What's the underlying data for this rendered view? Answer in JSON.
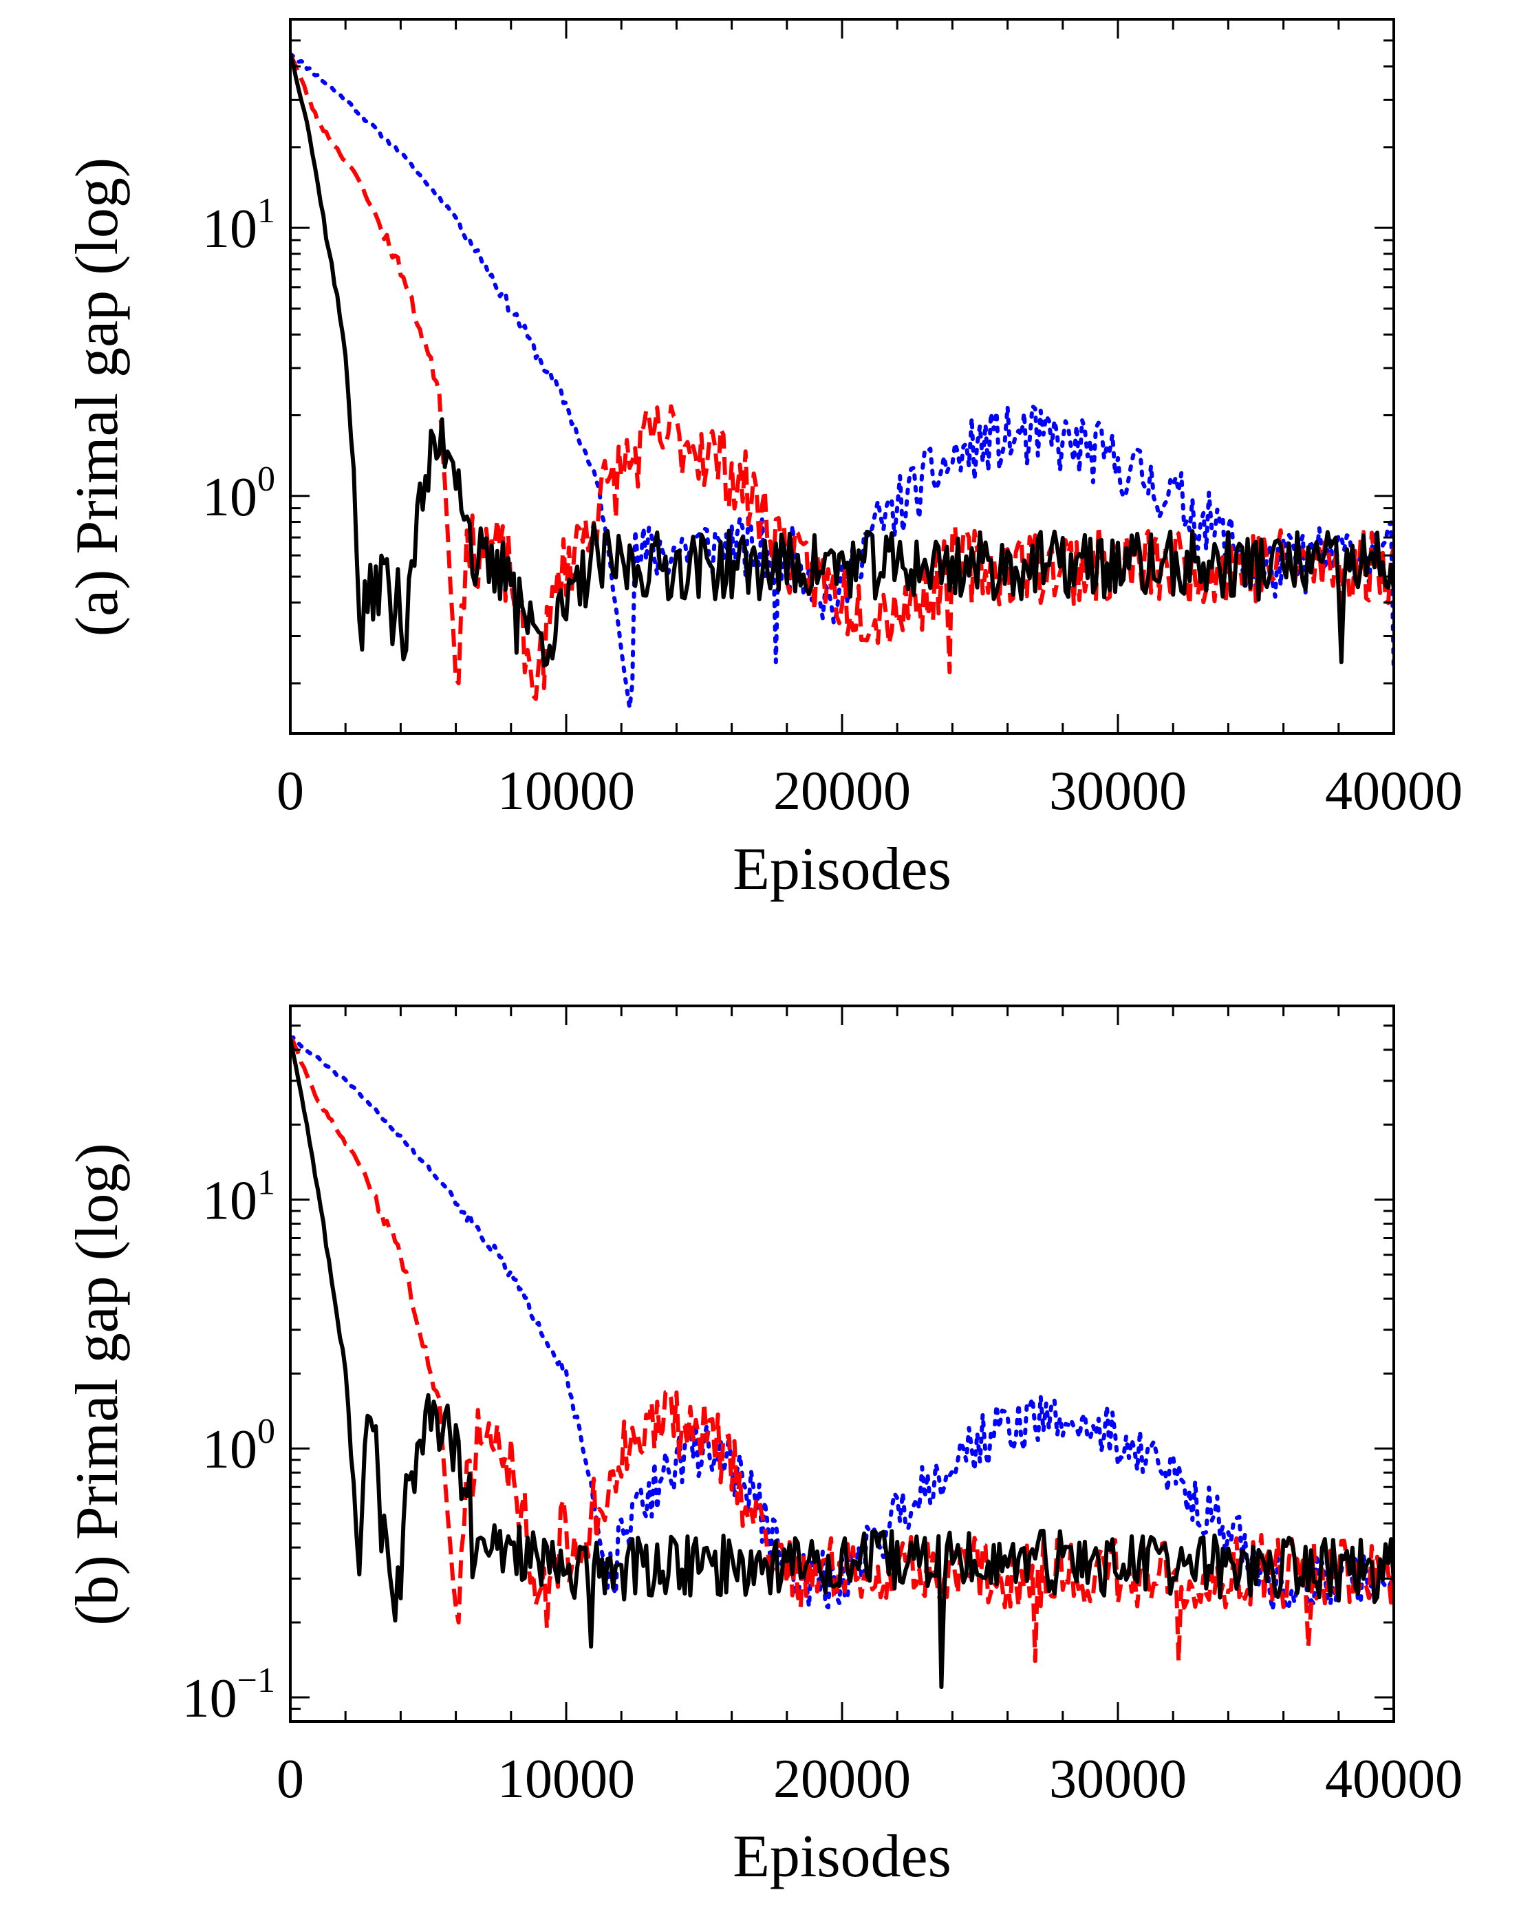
{
  "chart_data": [
    {
      "id": "a",
      "type": "line",
      "ylabel": "(a) Primal gap (log)",
      "xlabel": "Episodes",
      "yscale": "log",
      "xlim": [
        0,
        40000
      ],
      "ylim": [
        0.13,
        60
      ],
      "xticks": [
        {
          "value": 0,
          "label": "0"
        },
        {
          "value": 10000,
          "label": "10000"
        },
        {
          "value": 20000,
          "label": "20000"
        },
        {
          "value": 30000,
          "label": "30000"
        },
        {
          "value": 40000,
          "label": "40000"
        }
      ],
      "yticks": [
        {
          "value": 1,
          "base": "10",
          "exp": "0"
        },
        {
          "value": 10,
          "base": "10",
          "exp": "1"
        }
      ],
      "grid": false,
      "series": [
        {
          "color": "#0000ff",
          "dash": "dotted",
          "gen": {
            "seed": 11,
            "start": 45,
            "descent": [
              [
                0,
                45
              ],
              [
                2000,
                30
              ],
              [
                4000,
                19
              ],
              [
                6000,
                11
              ],
              [
                8000,
                5
              ],
              [
                10000,
                2.2
              ],
              [
                11200,
                1.05
              ],
              [
                12300,
                0.17
              ]
            ],
            "bumps": [
              [
                12300,
                15000,
                18500,
                0.65,
                0.58
              ],
              [
                18500,
                19800,
                20500,
                0.4,
                0.6
              ],
              [
                20500,
                26500,
                34500,
                1.65,
                0.62
              ],
              [
                34500,
                40000,
                40000,
                0.62,
                0.5
              ]
            ],
            "noise": 0.28,
            "step": 100,
            "spikes": [
              [
                17600,
                0.24
              ],
              [
                12400,
                0.2
              ],
              [
                40000,
                0.22
              ]
            ]
          }
        },
        {
          "color": "#ff0000",
          "dash": "dashed",
          "gen": {
            "seed": 23,
            "start": 45,
            "descent": [
              [
                0,
                45
              ],
              [
                1000,
                25
              ],
              [
                2500,
                15
              ],
              [
                4000,
                7
              ],
              [
                5400,
                2.5
              ],
              [
                6000,
                0.22
              ]
            ],
            "bumps": [
              [
                6200,
                7000,
                8000,
                0.65,
                0.5
              ],
              [
                8000,
                8800,
                9800,
                0.22,
                0.55
              ],
              [
                9800,
                13800,
                18500,
                1.65,
                0.5
              ],
              [
                18500,
                21500,
                24000,
                0.38,
                0.55
              ],
              [
                24000,
                32000,
                40000,
                0.55,
                0.55
              ]
            ],
            "noise": 0.34,
            "step": 100,
            "spikes": [
              [
                6100,
                0.2
              ],
              [
                8800,
                0.18
              ],
              [
                23900,
                0.22
              ]
            ]
          }
        },
        {
          "color": "#000000",
          "dash": "solid",
          "gen": {
            "seed": 37,
            "start": 45,
            "descent": [
              [
                0,
                45
              ],
              [
                600,
                25
              ],
              [
                1200,
                11
              ],
              [
                2000,
                3.5
              ],
              [
                2300,
                1.2
              ],
              [
                2500,
                0.34
              ]
            ],
            "bumps": [
              [
                2500,
                3400,
                4200,
                0.5,
                0.3
              ],
              [
                4200,
                5600,
                6800,
                1.6,
                0.45
              ],
              [
                6800,
                7500,
                8000,
                0.5,
                0.6
              ],
              [
                8000,
                9000,
                11000,
                0.3,
                0.6
              ],
              [
                11000,
                25000,
                40000,
                0.55,
                0.55
              ]
            ],
            "noise": 0.3,
            "step": 100,
            "spikes": [
              [
                3700,
                0.28
              ],
              [
                8200,
                0.26
              ],
              [
                38100,
                0.24
              ]
            ]
          }
        }
      ]
    },
    {
      "id": "b",
      "type": "line",
      "ylabel": "(b) Primal gap (log)",
      "xlabel": "Episodes",
      "yscale": "log",
      "xlim": [
        0,
        40000
      ],
      "ylim": [
        0.08,
        60
      ],
      "xticks": [
        {
          "value": 0,
          "label": "0"
        },
        {
          "value": 10000,
          "label": "10000"
        },
        {
          "value": 20000,
          "label": "20000"
        },
        {
          "value": 30000,
          "label": "30000"
        },
        {
          "value": 40000,
          "label": "40000"
        }
      ],
      "yticks": [
        {
          "value": 0.1,
          "base": "10",
          "exp": "−1"
        },
        {
          "value": 1,
          "base": "10",
          "exp": "0"
        },
        {
          "value": 10,
          "base": "10",
          "exp": "1"
        }
      ],
      "grid": false,
      "series": [
        {
          "color": "#0000ff",
          "dash": "dotted",
          "gen": {
            "seed": 51,
            "start": 45,
            "descent": [
              [
                0,
                45
              ],
              [
                2000,
                30
              ],
              [
                4000,
                18
              ],
              [
                6000,
                10
              ],
              [
                8000,
                5
              ],
              [
                10000,
                2
              ],
              [
                10800,
                0.8
              ],
              [
                11500,
                0.28
              ]
            ],
            "bumps": [
              [
                11500,
                15000,
                18000,
                1.0,
                0.32
              ],
              [
                18000,
                19000,
                20000,
                0.3,
                0.28
              ],
              [
                20000,
                27500,
                35500,
                1.3,
                0.3
              ],
              [
                35500,
                40000,
                40000,
                0.3,
                0.28
              ]
            ],
            "noise": 0.26,
            "step": 100,
            "spikes": [
              [
                11800,
                0.26
              ],
              [
                19500,
                0.23
              ]
            ]
          }
        },
        {
          "color": "#ff0000",
          "dash": "dashed",
          "gen": {
            "seed": 63,
            "start": 45,
            "descent": [
              [
                0,
                45
              ],
              [
                1000,
                25
              ],
              [
                2500,
                14
              ],
              [
                4000,
                6
              ],
              [
                5400,
                1.5
              ],
              [
                6000,
                0.22
              ]
            ],
            "bumps": [
              [
                6200,
                7200,
                8500,
                1.25,
                0.5
              ],
              [
                8500,
                9200,
                10000,
                0.24,
                0.6
              ],
              [
                10000,
                13800,
                18000,
                1.3,
                0.3
              ],
              [
                18000,
                28000,
                40000,
                0.32,
                0.32
              ]
            ],
            "noise": 0.34,
            "step": 100,
            "spikes": [
              [
                6100,
                0.2
              ],
              [
                9300,
                0.19
              ],
              [
                27000,
                0.14
              ],
              [
                32200,
                0.14
              ],
              [
                36900,
                0.16
              ]
            ]
          }
        },
        {
          "color": "#000000",
          "dash": "solid",
          "gen": {
            "seed": 77,
            "start": 45,
            "descent": [
              [
                0,
                45
              ],
              [
                600,
                20
              ],
              [
                1200,
                8
              ],
              [
                2000,
                2
              ],
              [
                2300,
                0.7
              ],
              [
                2500,
                0.32
              ]
            ],
            "bumps": [
              [
                2500,
                2900,
                3300,
                1.2,
                0.5
              ],
              [
                3300,
                3800,
                4200,
                0.25,
                0.7
              ],
              [
                4200,
                5200,
                6500,
                1.3,
                0.6
              ],
              [
                6500,
                8000,
                9000,
                0.4,
                0.35
              ],
              [
                9000,
                24000,
                40000,
                0.35,
                0.32
              ]
            ],
            "noise": 0.3,
            "step": 100,
            "spikes": [
              [
                4000,
                0.25
              ],
              [
                10900,
                0.16
              ],
              [
                23600,
                0.11
              ]
            ]
          }
        }
      ]
    }
  ]
}
